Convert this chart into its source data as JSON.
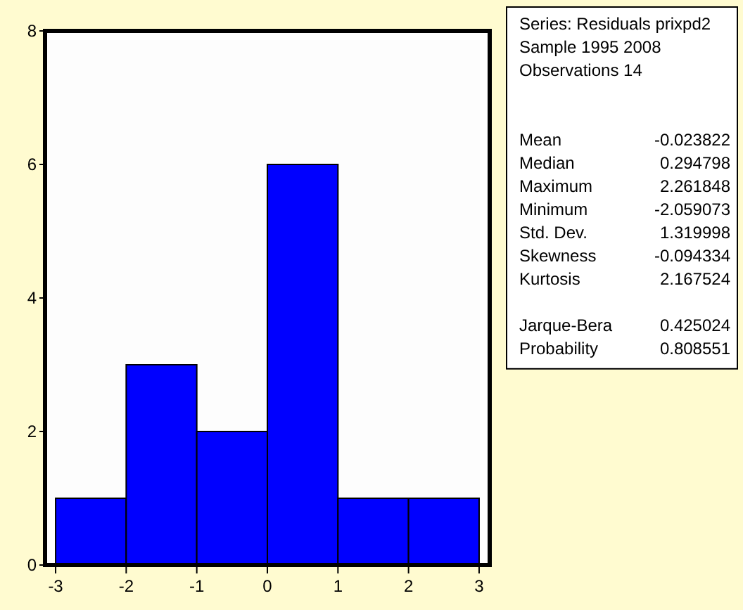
{
  "chart_data": [
    {
      "type": "histogram",
      "bins": [
        -3,
        -2,
        -1,
        0,
        1,
        2,
        3
      ],
      "values": [
        1,
        3,
        2,
        6,
        1,
        1
      ],
      "color": "#0000ff",
      "xlim": [
        -3.15,
        3.15
      ],
      "xticks": [
        -3,
        -2,
        -1,
        0,
        1,
        2,
        3
      ],
      "ylim": [
        0,
        8
      ],
      "yticks": [
        0,
        2,
        4,
        6,
        8
      ],
      "grid": false
    },
    {
      "type": "other",
      "annotations": [
        "Series: Residuals prixpd2",
        "Sample 1995 2008",
        "Observations 14"
      ],
      "categories": [
        null,
        "Mean",
        "Median",
        "Maximum",
        "Minimum",
        "Std. Dev.",
        "Skewness",
        "Kurtosis",
        null,
        "Jarque-Bera",
        "Probability"
      ],
      "values": [
        null,
        -0.023822,
        0.294798,
        2.261848,
        -2.059073,
        1.319998,
        -0.094334,
        2.167524,
        null,
        0.425024,
        0.808551
      ],
      "data_labels": true
    }
  ]
}
